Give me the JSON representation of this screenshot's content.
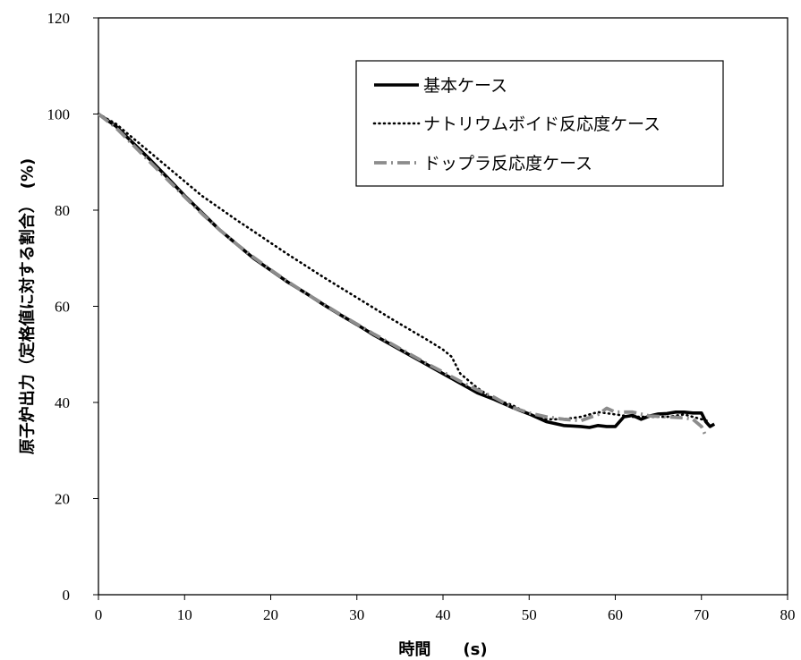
{
  "chart_data": {
    "type": "line",
    "xlabel": "時間　　(s)",
    "ylabel": "原子炉出力（定格値に対する割合）　(%)",
    "xlim": [
      0,
      80
    ],
    "ylim": [
      0,
      120
    ],
    "xticks": [
      0,
      10,
      20,
      30,
      40,
      50,
      60,
      70,
      80
    ],
    "yticks": [
      0,
      20,
      40,
      60,
      80,
      100,
      120
    ],
    "grid": false,
    "legend_position": "top-right",
    "series": [
      {
        "name": "基本ケース",
        "color": "#000000",
        "style": "solid",
        "x": [
          0,
          2,
          4,
          6,
          8,
          10,
          12,
          14,
          16,
          18,
          20,
          22,
          24,
          26,
          28,
          30,
          32,
          34,
          36,
          38,
          40,
          42,
          44,
          46,
          48,
          50,
          52,
          54,
          56,
          57,
          58,
          59,
          60,
          61,
          62,
          63,
          64,
          65,
          66,
          67,
          68,
          69,
          70,
          70.5,
          71,
          71.5
        ],
        "values": [
          100,
          97.5,
          94,
          90.5,
          86.8,
          83,
          79.5,
          76,
          73,
          70,
          67.5,
          65,
          62.8,
          60.5,
          58.3,
          56.2,
          54,
          52,
          50,
          48,
          46,
          44,
          42,
          40.6,
          39,
          37.6,
          36,
          35.2,
          35,
          34.8,
          35.2,
          35,
          35,
          37,
          37.3,
          36.5,
          37.2,
          37.6,
          37.7,
          38,
          38,
          37.8,
          37.8,
          36,
          35,
          35.5
        ]
      },
      {
        "name": "ナトリウムボイド反応度ケース",
        "color": "#000000",
        "style": "dotted",
        "x": [
          0,
          2,
          4,
          6,
          8,
          10,
          12,
          14,
          16,
          18,
          20,
          22,
          24,
          26,
          28,
          30,
          32,
          34,
          36,
          38,
          40,
          41,
          42,
          44,
          46,
          48,
          50,
          52,
          54,
          56,
          58,
          60,
          62,
          64,
          66,
          68,
          70,
          71
        ],
        "values": [
          100,
          98,
          95,
          92,
          89,
          86,
          83,
          80.5,
          78,
          75.6,
          73.2,
          70.8,
          68.5,
          66.2,
          64,
          61.8,
          59.6,
          57.4,
          55.3,
          53.2,
          51,
          49.5,
          46,
          43,
          40.6,
          39.5,
          37.5,
          36.5,
          36.5,
          37,
          38,
          37.5,
          37,
          37,
          37,
          37.5,
          36.5,
          36
        ]
      },
      {
        "name": "ドップラ反応度ケース",
        "color": "#8c8c8c",
        "style": "dashdot",
        "x": [
          0,
          2,
          4,
          6,
          8,
          10,
          12,
          14,
          16,
          18,
          20,
          22,
          24,
          26,
          28,
          30,
          32,
          34,
          36,
          38,
          40,
          42,
          44,
          46,
          48,
          50,
          52,
          54,
          56,
          58,
          59,
          60,
          62,
          64,
          66,
          68,
          69,
          70,
          70.5
        ],
        "values": [
          100,
          97.2,
          93.6,
          90,
          86.4,
          82.8,
          79.3,
          76,
          73,
          70.2,
          67.6,
          65.1,
          62.8,
          60.6,
          58.4,
          56.3,
          54.2,
          52.2,
          50.2,
          48.2,
          46.3,
          44.4,
          42.6,
          41,
          39,
          37.8,
          37,
          36.5,
          36.2,
          37.5,
          38.8,
          38,
          38,
          37.2,
          37,
          36.8,
          36.5,
          35,
          33
        ]
      }
    ]
  }
}
